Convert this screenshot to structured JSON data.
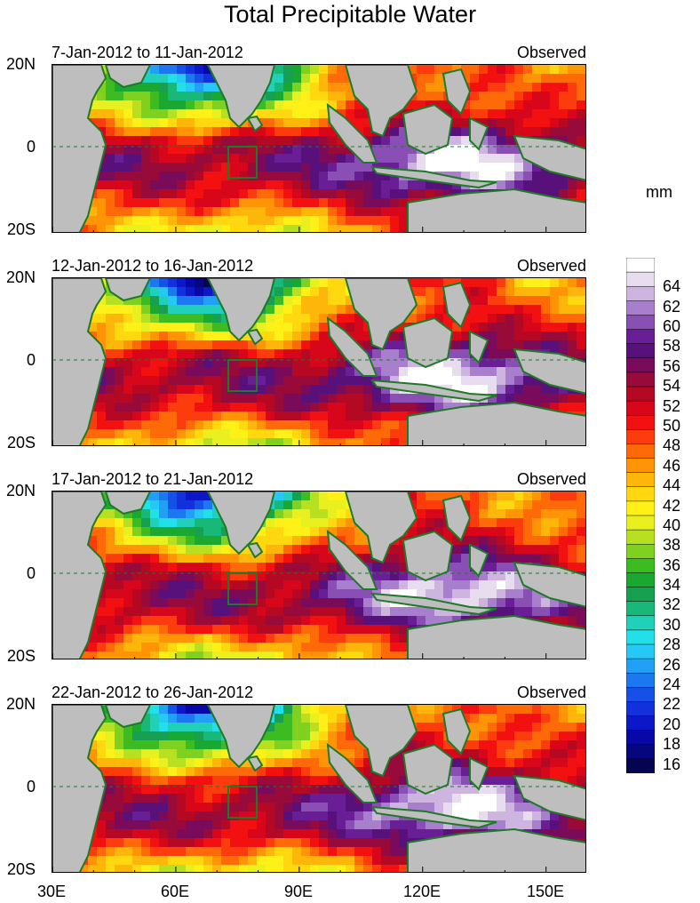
{
  "title": "Total Precipitable Water",
  "units": "mm",
  "panels": [
    {
      "date_range": "7-Jan-2012 to 11-Jan-2012",
      "tag": "Observed"
    },
    {
      "date_range": "12-Jan-2012 to 16-Jan-2012",
      "tag": "Observed"
    },
    {
      "date_range": "17-Jan-2012 to 21-Jan-2012",
      "tag": "Observed"
    },
    {
      "date_range": "22-Jan-2012 to 26-Jan-2012",
      "tag": "Observed"
    }
  ],
  "lat_labels": [
    "20N",
    "0",
    "20S"
  ],
  "lon_labels": [
    "30E",
    "60E",
    "90E",
    "120E",
    "150E"
  ],
  "colorbar": {
    "labels": [
      "64",
      "62",
      "60",
      "58",
      "56",
      "54",
      "52",
      "50",
      "48",
      "46",
      "44",
      "42",
      "40",
      "38",
      "36",
      "34",
      "32",
      "30",
      "28",
      "26",
      "24",
      "22",
      "20",
      "18",
      "16"
    ],
    "colors": [
      "#ffffff",
      "#e8dcef",
      "#cdb5e0",
      "#a87fcc",
      "#8a4fb4",
      "#6a1e95",
      "#58117a",
      "#7a0a5a",
      "#980a3a",
      "#b50822",
      "#d8061a",
      "#f21010",
      "#fc3c0c",
      "#fe6a08",
      "#fe9406",
      "#ffb60a",
      "#ffd810",
      "#fff018",
      "#e8f020",
      "#b8e020",
      "#80d020",
      "#3cbc20",
      "#1aa830",
      "#16a050",
      "#18b878",
      "#20d0b8",
      "#22e0e8",
      "#26c8f5",
      "#22a0f5",
      "#1c78f0",
      "#1650e8",
      "#1230dc",
      "#0c18c8",
      "#0808a8",
      "#06067e",
      "#040452"
    ]
  }
}
